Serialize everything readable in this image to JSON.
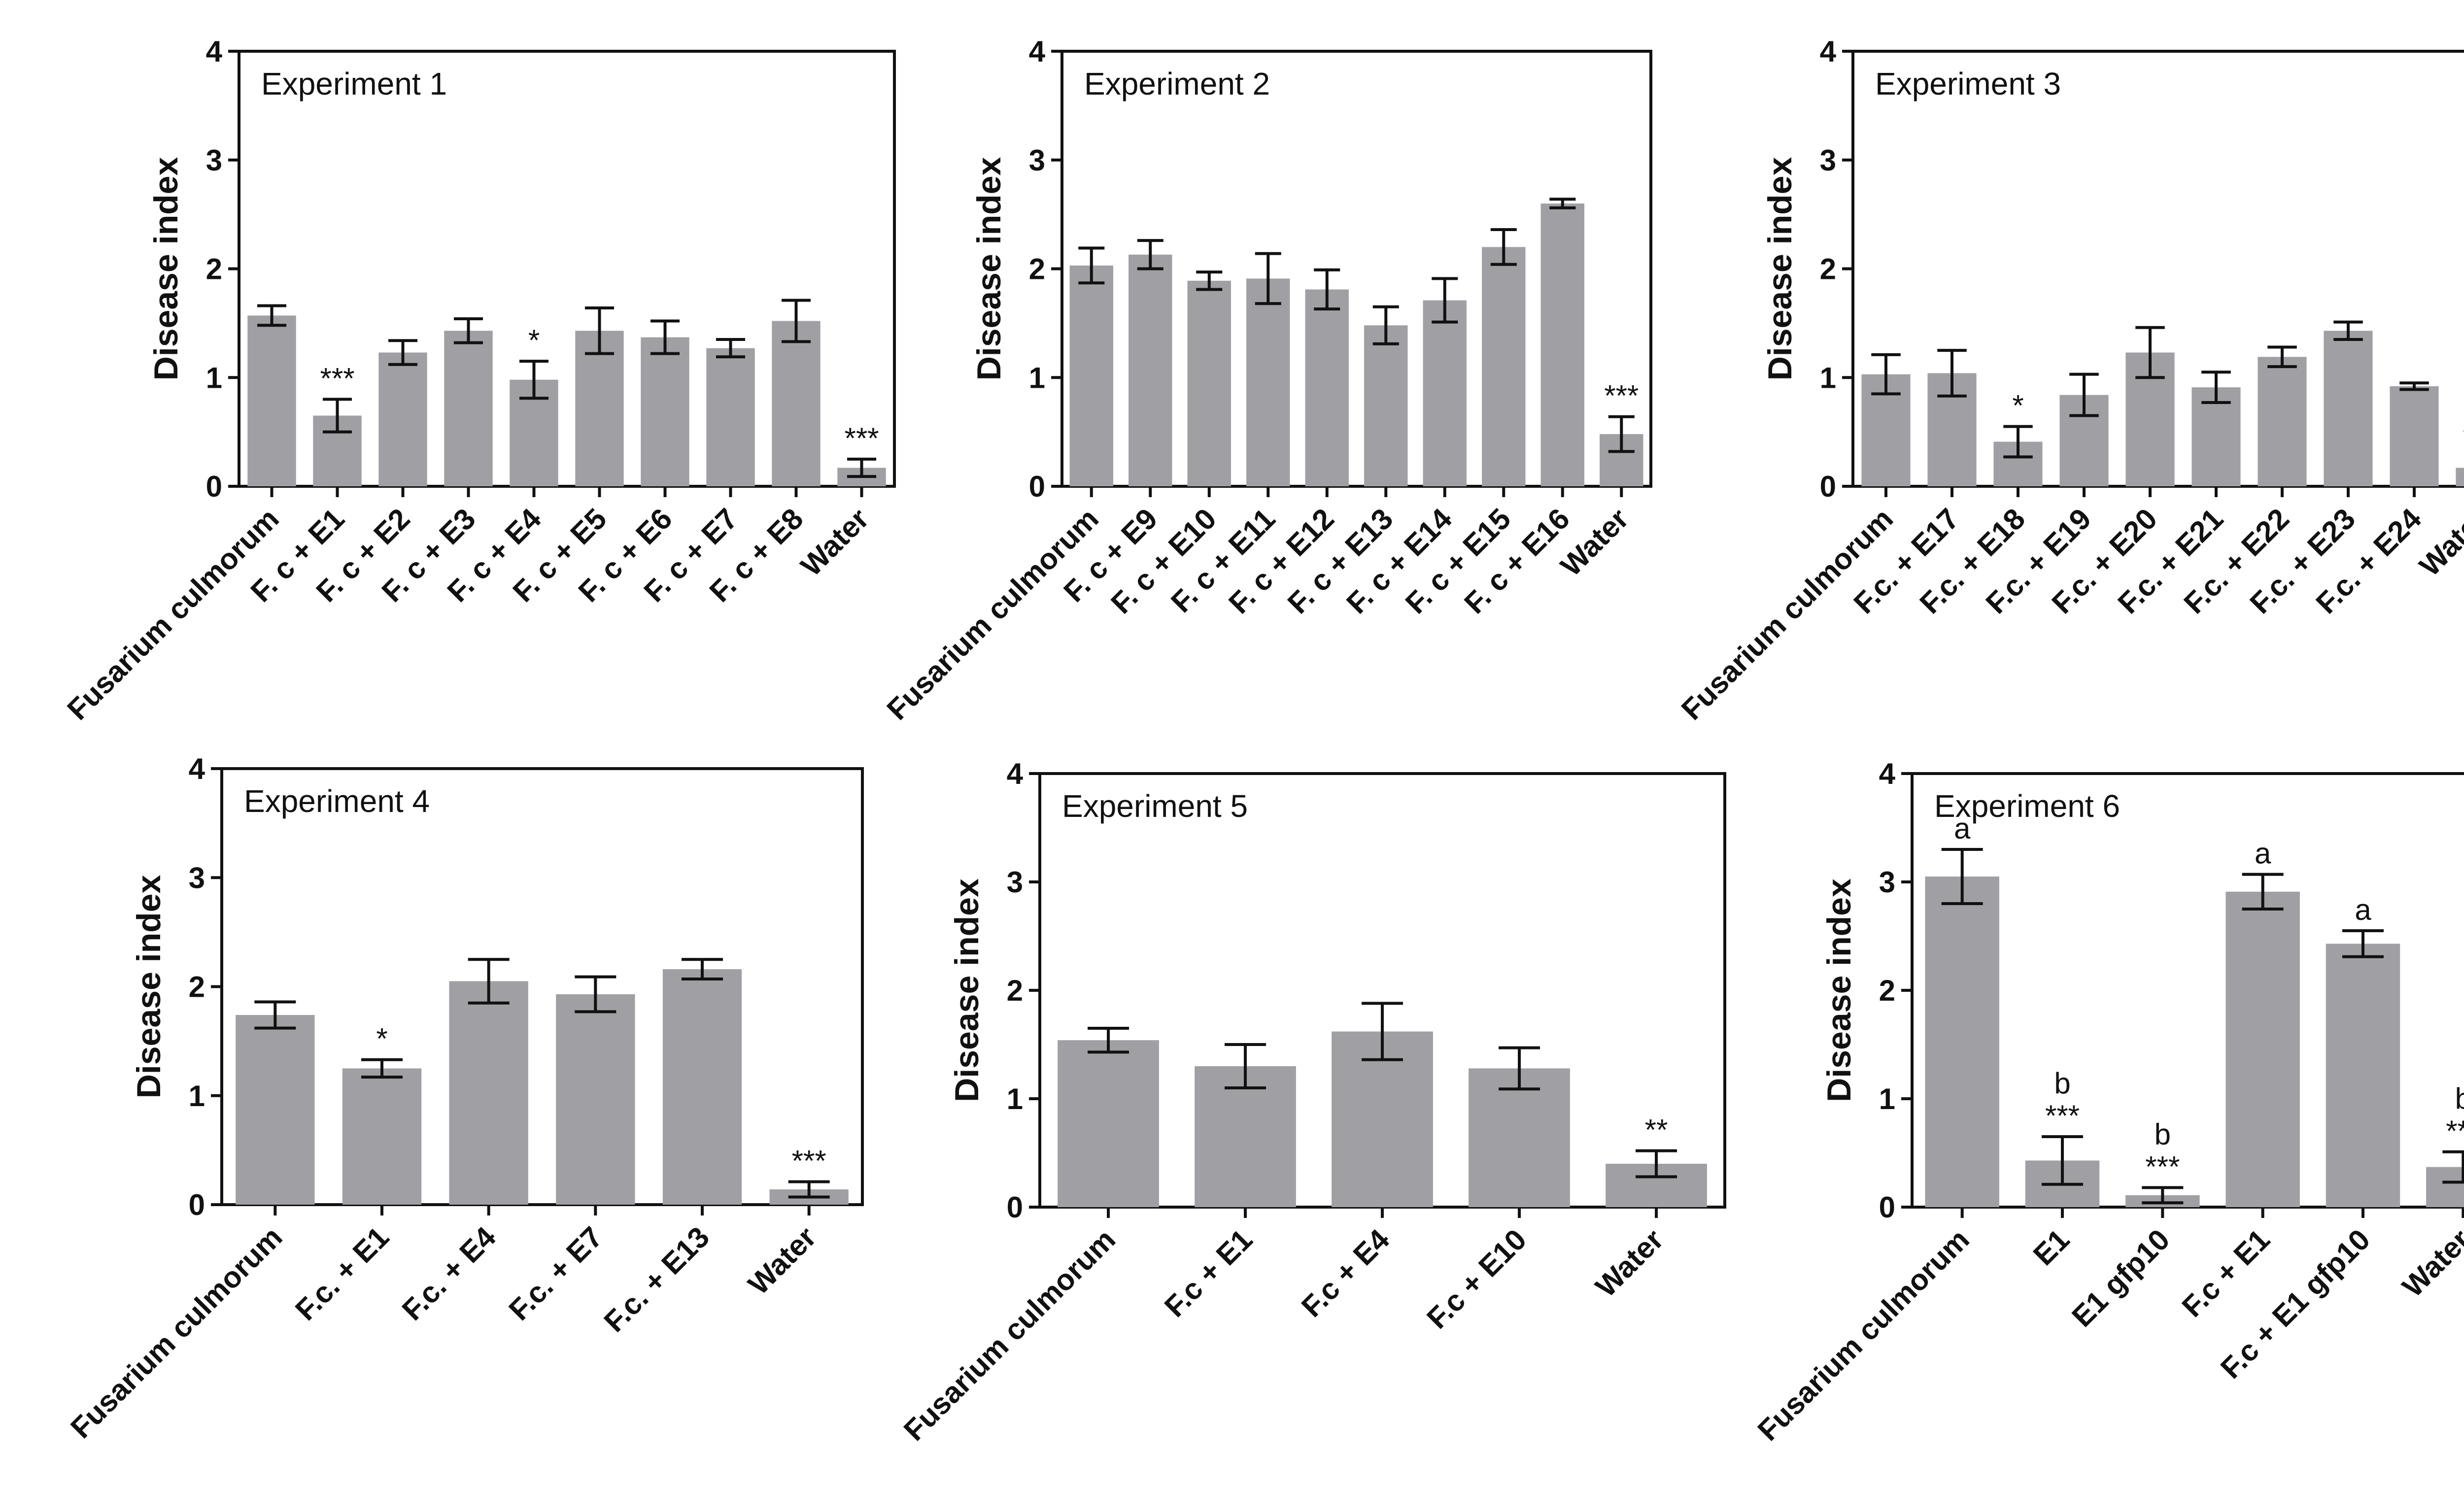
{
  "chart_data": [
    {
      "type": "bar",
      "title": "Experiment 1",
      "ylabel": "Disease index",
      "ylim": [
        0,
        4
      ],
      "yticks": [
        0,
        1,
        2,
        3,
        4
      ],
      "categories": [
        "Fusarium culmorum",
        "F. c + E1",
        "F. c + E2",
        "F. c + E3",
        "F. c + E4",
        "F. c + E5",
        "F. c + E6",
        "F. c + E7",
        "F. c + E8",
        "Water"
      ],
      "values": [
        1.57,
        0.65,
        1.23,
        1.43,
        0.98,
        1.43,
        1.37,
        1.27,
        1.52,
        0.17
      ],
      "errors": [
        0.09,
        0.15,
        0.11,
        0.11,
        0.17,
        0.21,
        0.15,
        0.08,
        0.19,
        0.08
      ],
      "annotations": [
        "",
        "***",
        "",
        "",
        "*",
        "",
        "",
        "",
        "",
        "***"
      ],
      "bar_color": "#a0a0a4"
    },
    {
      "type": "bar",
      "title": "Experiment 2",
      "ylabel": "Disease index",
      "ylim": [
        0,
        4
      ],
      "yticks": [
        0,
        1,
        2,
        3,
        4
      ],
      "categories": [
        "Fusarium culmorum",
        "F. c + E9",
        "F. c + E10",
        "F. c + E11",
        "F. c + E12",
        "F. c + E13",
        "F. c + E14",
        "F. c + E15",
        "F. c + E16",
        "Water"
      ],
      "values": [
        2.03,
        2.13,
        1.89,
        1.91,
        1.81,
        1.48,
        1.71,
        2.2,
        2.6,
        0.48
      ],
      "errors": [
        0.16,
        0.13,
        0.08,
        0.23,
        0.18,
        0.17,
        0.2,
        0.16,
        0.04,
        0.16
      ],
      "annotations": [
        "",
        "",
        "",
        "",
        "",
        "",
        "",
        "",
        "",
        "***"
      ],
      "bar_color": "#a0a0a4"
    },
    {
      "type": "bar",
      "title": "Experiment 3",
      "ylabel": "Disease index",
      "ylim": [
        0,
        4
      ],
      "yticks": [
        0,
        1,
        2,
        3,
        4
      ],
      "categories": [
        "Fusarium culmorum",
        "F.c. + E17",
        "F.c. + E18",
        "F.c. + E19",
        "F.c. + E20",
        "F.c. + E21",
        "F.c. + E22",
        "F.c. + E23",
        "F.c. + E24",
        "Water"
      ],
      "values": [
        1.03,
        1.04,
        0.41,
        0.84,
        1.23,
        0.91,
        1.19,
        1.43,
        0.92,
        0.17
      ],
      "errors": [
        0.18,
        0.21,
        0.14,
        0.19,
        0.23,
        0.14,
        0.09,
        0.08,
        0.03,
        0.09
      ],
      "annotations": [
        "",
        "",
        "*",
        "",
        "",
        "",
        "",
        "",
        "",
        "***"
      ],
      "bar_color": "#a0a0a4"
    },
    {
      "type": "bar",
      "title": "Experiment 4",
      "ylabel": "Disease index",
      "ylim": [
        0,
        4
      ],
      "yticks": [
        0,
        1,
        2,
        3,
        4
      ],
      "categories": [
        "Fusarium culmorum",
        "F.c. + E1",
        "F.c. + E4",
        "F.c. + E7",
        "F.c. + E13",
        "Water"
      ],
      "values": [
        1.74,
        1.25,
        2.05,
        1.93,
        2.16,
        0.14
      ],
      "errors": [
        0.12,
        0.08,
        0.2,
        0.16,
        0.09,
        0.07
      ],
      "annotations": [
        "",
        "*",
        "",
        "",
        "",
        "***"
      ],
      "bar_color": "#a0a0a4"
    },
    {
      "type": "bar",
      "title": "Experiment 5",
      "ylabel": "Disease index",
      "ylim": [
        0,
        4
      ],
      "yticks": [
        0,
        1,
        2,
        3,
        4
      ],
      "categories": [
        "Fusarium culmorum",
        "F.c + E1",
        "F.c + E4",
        "F.c + E10",
        "Water"
      ],
      "values": [
        1.54,
        1.3,
        1.62,
        1.28,
        0.4
      ],
      "errors": [
        0.11,
        0.2,
        0.26,
        0.19,
        0.12
      ],
      "annotations": [
        "",
        "",
        "",
        "",
        "**"
      ],
      "bar_color": "#a0a0a4"
    },
    {
      "type": "bar",
      "title": "Experiment 6",
      "ylabel": "Disease index",
      "ylim": [
        0,
        4
      ],
      "yticks": [
        0,
        1,
        2,
        3,
        4
      ],
      "categories": [
        "Fusarium culmorum",
        "E1",
        "E1 gfp10",
        "F.c + E1",
        "F.c + E1 gfp10",
        "Water"
      ],
      "values": [
        3.05,
        0.43,
        0.11,
        2.91,
        2.43,
        0.37
      ],
      "errors": [
        0.25,
        0.22,
        0.07,
        0.16,
        0.12,
        0.14
      ],
      "annotations": [
        "a",
        "b\n***",
        "b\n***",
        "a",
        "a",
        "b\n***"
      ],
      "bar_color": "#a0a0a4"
    }
  ]
}
